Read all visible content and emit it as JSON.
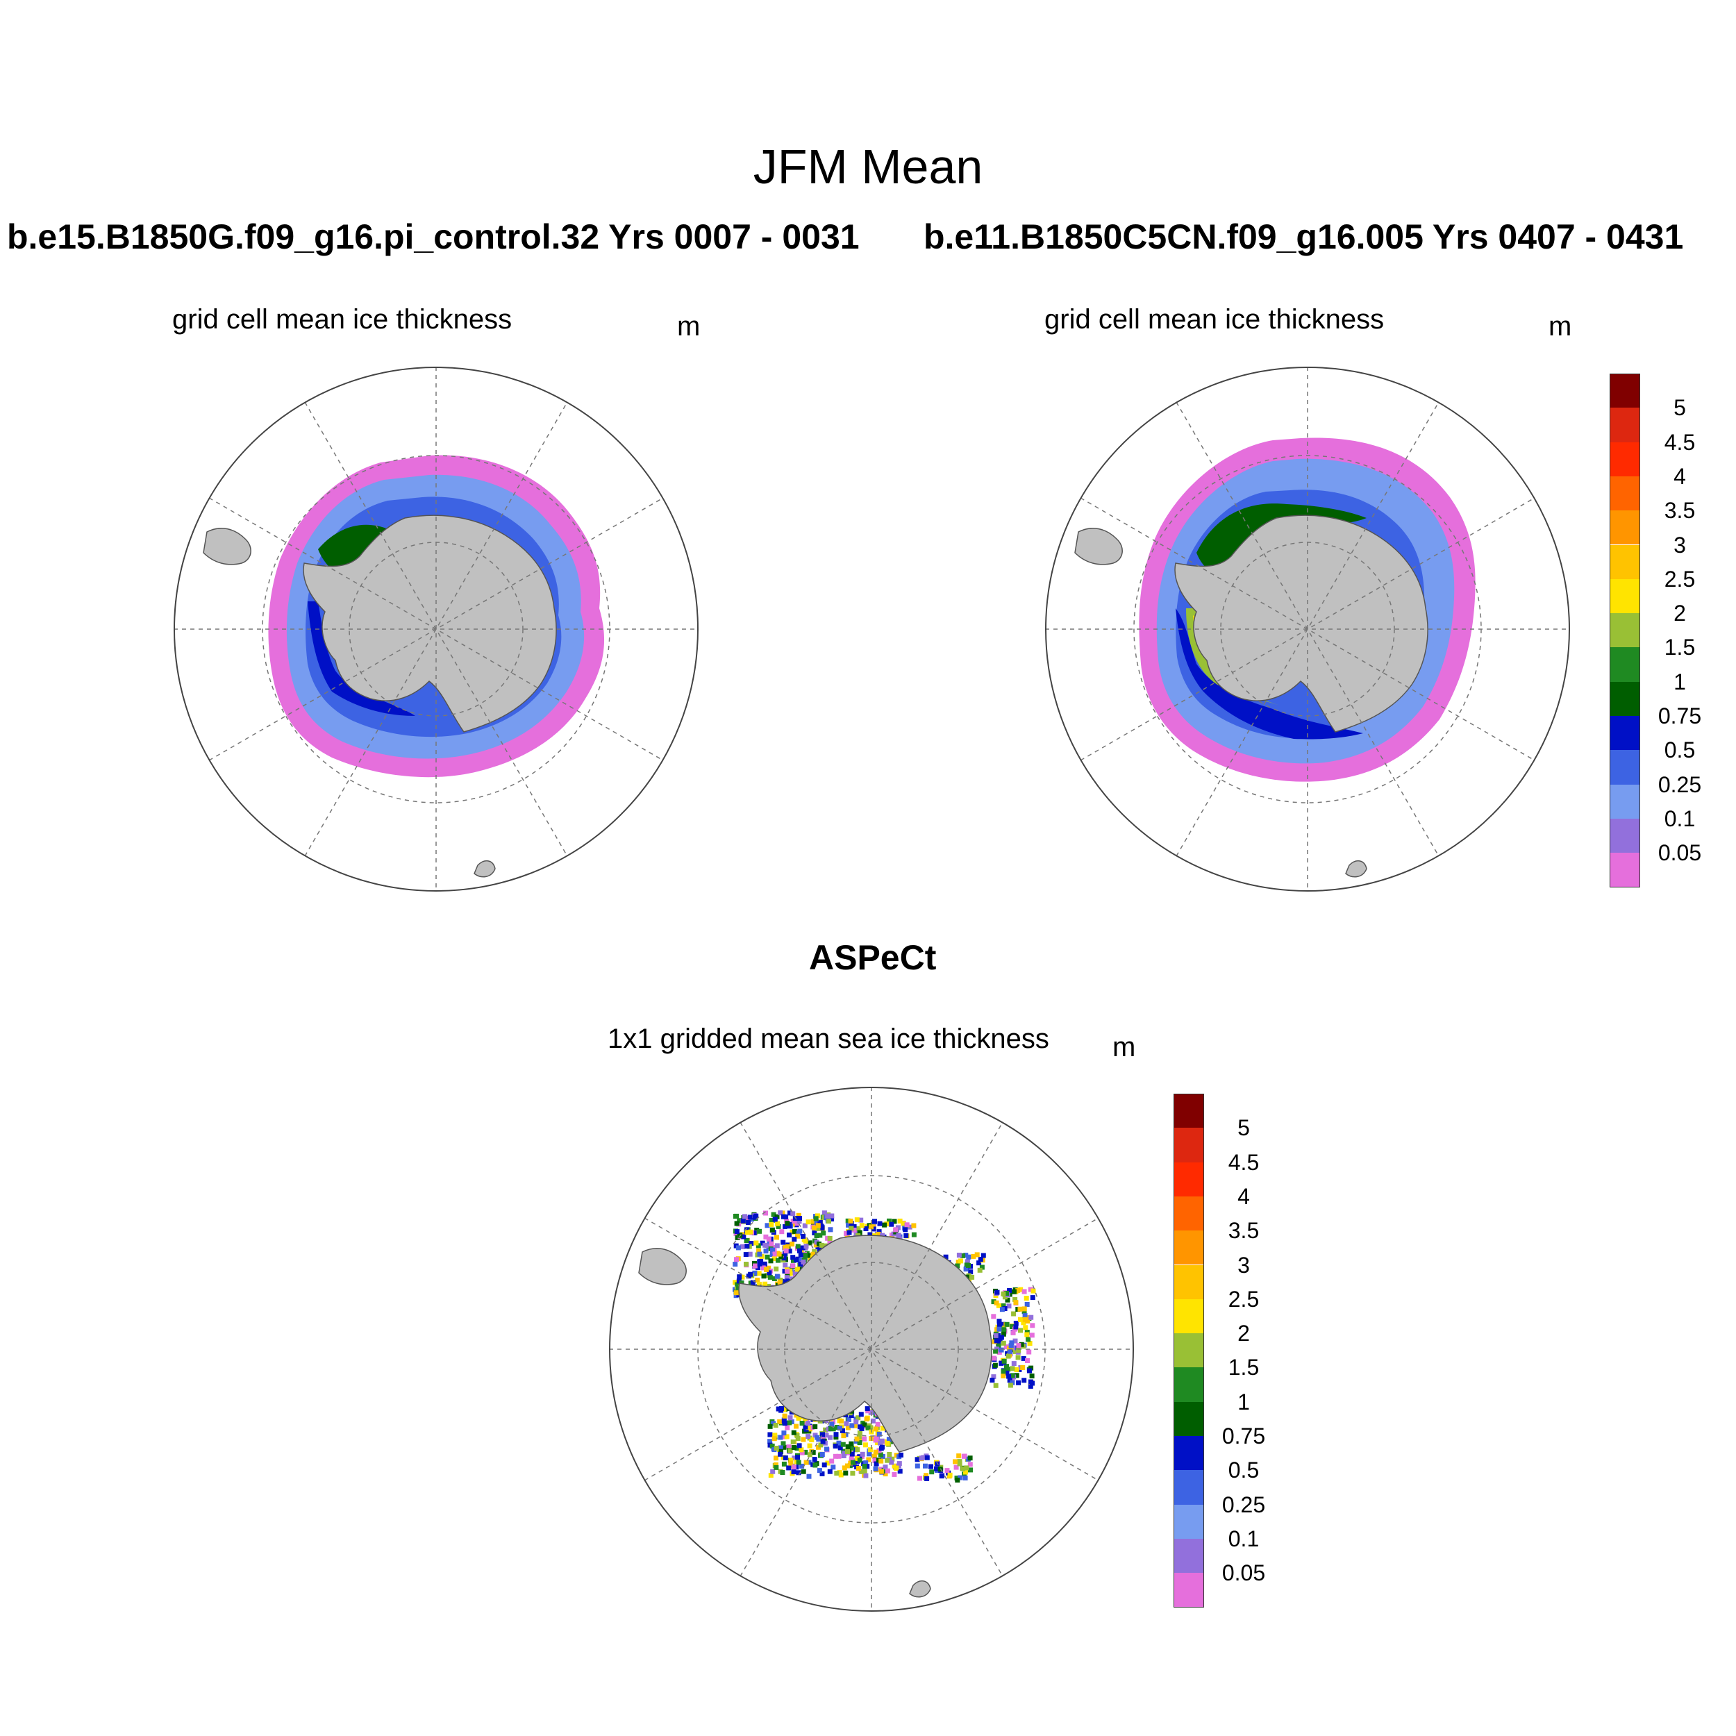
{
  "figure_title": "JFM Mean",
  "panels": [
    {
      "run_title": "b.e15.B1850G.f09_g16.pi_control.32  Yrs 0007 - 0031",
      "field_label": "grid cell mean ice thickness",
      "units": "m"
    },
    {
      "run_title": "b.e11.B1850C5CN.f09_g16.005  Yrs 0407 - 0431",
      "field_label": "grid cell mean ice thickness",
      "units": "m"
    },
    {
      "run_title": "ASPeCt",
      "field_label": "1x1 gridded mean sea ice thickness",
      "units": "m"
    }
  ],
  "colorbar": {
    "levels": [
      "0.05",
      "0.1",
      "0.25",
      "0.5",
      "0.75",
      "1",
      "1.5",
      "2",
      "2.5",
      "3",
      "3.5",
      "4",
      "4.5",
      "5"
    ],
    "colors": [
      "#e56fdc",
      "#9270dc",
      "#779cf0",
      "#3d63e3",
      "#0010c6",
      "#005e00",
      "#1f8a22",
      "#99c035",
      "#ffe400",
      "#ffc300",
      "#ff9500",
      "#ff6400",
      "#ff2a00",
      "#dd2710",
      "#800000"
    ]
  },
  "land_color": "#c0c0c0"
}
